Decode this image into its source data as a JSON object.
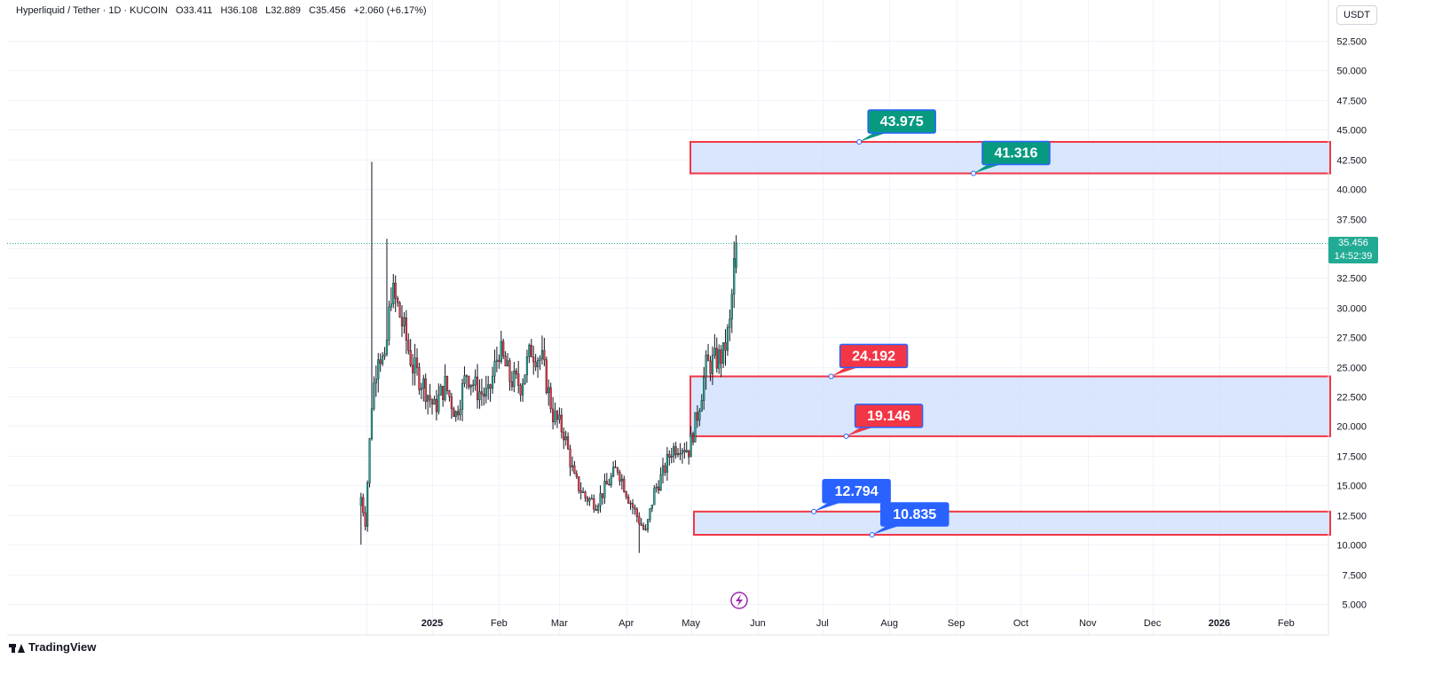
{
  "header": {
    "symbol": "Hyperliquid / Tether · 1D · KUCOIN",
    "open": "O33.411",
    "high": "H36.108",
    "low": "L32.889",
    "close": "C35.456",
    "change": "+2.060 (+6.17%)"
  },
  "currency": "USDT",
  "last_price": {
    "value": "35.456",
    "countdown": "14:52:39"
  },
  "branding": "TradingView",
  "colors": {
    "up": "#22ab94",
    "down": "#f23645",
    "zone_fill": "#cfe0fc",
    "zone_border": "#f23645",
    "label_green": "#089981",
    "label_red": "#f23645",
    "label_blue": "#2962ff",
    "label_border": "#2962ff",
    "price_line": "#22ab94",
    "grid": "#f0f3fa",
    "lightning": "#9c27b0"
  },
  "chart_data": {
    "type": "candlestick",
    "title": "Hyperliquid / Tether · 1D · KUCOIN",
    "y_axis": {
      "ylim": [
        3.5,
        54
      ],
      "ticks": [
        "52.500",
        "50.000",
        "47.500",
        "45.000",
        "42.500",
        "40.000",
        "37.500",
        "35.000",
        "32.500",
        "30.000",
        "27.500",
        "25.000",
        "22.500",
        "20.000",
        "17.500",
        "15.000",
        "12.500",
        "10.000",
        "7.500",
        "5.000"
      ],
      "side": "right"
    },
    "x_axis": {
      "labels": [
        "2025",
        "Feb",
        "Mar",
        "Apr",
        "May",
        "Jun",
        "Jul",
        "Aug",
        "Sep",
        "Oct",
        "Nov",
        "Dec",
        "2026",
        "Feb"
      ],
      "bold": [
        "2025",
        "2026"
      ]
    },
    "grid": true,
    "zones": [
      {
        "top": 43.975,
        "bottom": 41.316,
        "start": "2025-05-01"
      },
      {
        "top": 24.192,
        "bottom": 19.146,
        "start": "2025-05-01"
      },
      {
        "top": 12.794,
        "bottom": 10.835,
        "start": "2025-05-03"
      }
    ],
    "labels": [
      {
        "text": "43.975",
        "value": 43.975,
        "color": "green",
        "date": "2025-07-18"
      },
      {
        "text": "41.316",
        "value": 41.316,
        "color": "green",
        "date": "2025-09-09"
      },
      {
        "text": "24.192",
        "value": 24.192,
        "color": "red",
        "date": "2025-07-05"
      },
      {
        "text": "19.146",
        "value": 19.146,
        "color": "red",
        "date": "2025-07-12"
      },
      {
        "text": "12.794",
        "value": 12.794,
        "color": "blue",
        "date": "2025-06-27"
      },
      {
        "text": "10.835",
        "value": 10.835,
        "color": "blue",
        "date": "2025-07-24"
      }
    ],
    "last_price": 35.456,
    "closes": [
      {
        "date": "2024-11-29",
        "close": 14.0
      },
      {
        "date": "2024-12-01",
        "close": 12.0
      },
      {
        "date": "2024-12-04",
        "close": 22.0
      },
      {
        "date": "2024-12-07",
        "close": 26.5
      },
      {
        "date": "2024-12-10",
        "close": 25.0
      },
      {
        "date": "2024-12-13",
        "close": 31.5
      },
      {
        "date": "2024-12-16",
        "close": 30.0
      },
      {
        "date": "2024-12-19",
        "close": 28.0
      },
      {
        "date": "2024-12-23",
        "close": 25.0
      },
      {
        "date": "2024-12-28",
        "close": 23.5
      },
      {
        "date": "2025-01-02",
        "close": 21.5
      },
      {
        "date": "2025-01-07",
        "close": 23.5
      },
      {
        "date": "2025-01-12",
        "close": 21.0
      },
      {
        "date": "2025-01-17",
        "close": 24.5
      },
      {
        "date": "2025-01-22",
        "close": 23.0
      },
      {
        "date": "2025-01-27",
        "close": 22.5
      },
      {
        "date": "2025-02-01",
        "close": 26.5
      },
      {
        "date": "2025-02-06",
        "close": 24.0
      },
      {
        "date": "2025-02-11",
        "close": 23.5
      },
      {
        "date": "2025-02-16",
        "close": 26.5
      },
      {
        "date": "2025-02-21",
        "close": 25.5
      },
      {
        "date": "2025-02-26",
        "close": 21.0
      },
      {
        "date": "2025-03-03",
        "close": 19.5
      },
      {
        "date": "2025-03-08",
        "close": 15.5
      },
      {
        "date": "2025-03-13",
        "close": 14.0
      },
      {
        "date": "2025-03-18",
        "close": 13.5
      },
      {
        "date": "2025-03-23",
        "close": 15.0
      },
      {
        "date": "2025-03-28",
        "close": 16.5
      },
      {
        "date": "2025-04-02",
        "close": 14.0
      },
      {
        "date": "2025-04-07",
        "close": 12.0
      },
      {
        "date": "2025-04-10",
        "close": 11.0
      },
      {
        "date": "2025-04-14",
        "close": 14.5
      },
      {
        "date": "2025-04-18",
        "close": 16.0
      },
      {
        "date": "2025-04-22",
        "close": 18.0
      },
      {
        "date": "2025-04-26",
        "close": 18.5
      },
      {
        "date": "2025-04-30",
        "close": 18.0
      },
      {
        "date": "2025-05-04",
        "close": 21.0
      },
      {
        "date": "2025-05-08",
        "close": 25.0
      },
      {
        "date": "2025-05-12",
        "close": 25.5
      },
      {
        "date": "2025-05-16",
        "close": 26.0
      },
      {
        "date": "2025-05-19",
        "close": 28.5
      },
      {
        "date": "2025-05-21",
        "close": 33.4
      },
      {
        "date": "2025-05-22",
        "close": 35.456
      }
    ]
  },
  "lightning_icon": "lightning-icon"
}
